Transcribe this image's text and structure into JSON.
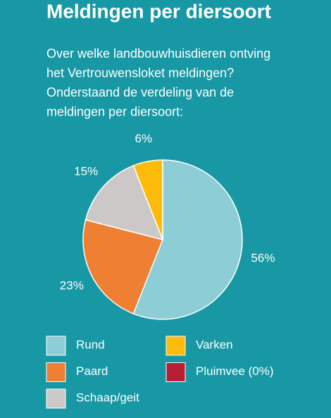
{
  "chart_data": {
    "type": "pie",
    "title": "Meldingen per diersoort",
    "subtitle": [
      "Over welke landbouwhuisdieren ontving",
      "het Vertrouwensloket meldingen?",
      "Onderstaand de verdeling van de",
      "meldingen per diersoort:"
    ],
    "categories": [
      "Rund",
      "Paard",
      "Schaap/geit",
      "Varken",
      "Pluimvee (0%)"
    ],
    "values": [
      56,
      23,
      15,
      6,
      0
    ],
    "value_labels": [
      "56%",
      "23%",
      "15%",
      "6%",
      null
    ],
    "colors": [
      "#8dcdd5",
      "#ef7f33",
      "#cdc8c8",
      "#fcbb0b",
      "#b51e33"
    ]
  }
}
